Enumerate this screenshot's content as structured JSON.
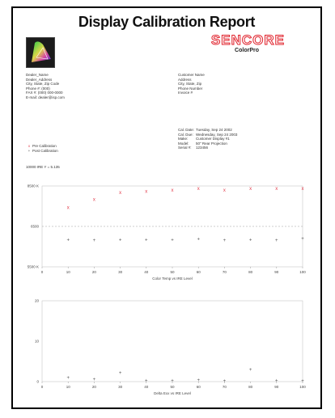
{
  "report": {
    "title": "Display Calibration Report",
    "brand": "SENCORE",
    "subbrand": "ColorPro"
  },
  "dealer": {
    "name": "Dealer_Name",
    "address": "Dealer_Address",
    "city": "City, State, Zip Code",
    "phone": "Phone #: (000)",
    "fax": "FAX #: (000) 000-0000",
    "email": "E-mail: dealer@isp.com"
  },
  "customer": {
    "name": "Customer Name",
    "address": "Address",
    "city": "City, State, Zip",
    "phone": "Phone Number",
    "invoice": "Invoice #"
  },
  "calibration": {
    "cal_date_label": "Cal. Date:",
    "cal_date": "Tuesday, Sep 24 2002",
    "cal_due_label": "Cal. Due:",
    "cal_due": "Wednesday, Sep 24 2003",
    "make_label": "Make:",
    "make": "Customer Display #1",
    "model_label": "Model:",
    "model": "50\" Rear Projection",
    "serial_label": "Serial #:",
    "serial": "123456"
  },
  "legend": {
    "pre_mark": "x",
    "pre_label": "Pre Calibration",
    "post_mark": "+",
    "post_label": "Post Calibration"
  },
  "reference": "10000 IRE  Y = 5.135",
  "colors": {
    "pre": "#e23b4a",
    "post": "#555555",
    "brand": "#e0202a"
  },
  "chart_data": [
    {
      "type": "scatter",
      "xlabel": "Color Temp vs IRE Level",
      "ylim": [
        5500,
        8500
      ],
      "y_ticks": [
        "8500 K",
        "6500",
        "5500 K"
      ],
      "x_ticks": [
        "0",
        "10",
        "20",
        "30",
        "40",
        "50",
        "60",
        "70",
        "80",
        "90",
        "100"
      ],
      "x": [
        10,
        20,
        30,
        40,
        50,
        60,
        70,
        80,
        90,
        100
      ],
      "series": [
        {
          "values": [
            7700,
            8000,
            8250,
            8300,
            8350,
            8400,
            8350,
            8400,
            8400,
            8400
          ]
        },
        {
          "values": [
            6500,
            6480,
            6500,
            6500,
            6500,
            6530,
            6490,
            6500,
            6480,
            6550
          ]
        }
      ]
    },
    {
      "type": "scatter",
      "xlabel": "Delta Exx vs IRE Level",
      "ylim": [
        0,
        20
      ],
      "y_ticks": [
        "20",
        "10",
        "0"
      ],
      "x_ticks": [
        "0",
        "10",
        "20",
        "30",
        "40",
        "50",
        "60",
        "70",
        "80",
        "90",
        "100"
      ],
      "x": [
        10,
        20,
        30,
        40,
        50,
        60,
        70,
        80,
        90,
        100
      ],
      "series": [
        {
          "values": [
            1.0,
            0.6,
            2.2,
            0.3,
            0.3,
            0.4,
            0.2,
            3.0,
            0.3,
            0.2
          ]
        }
      ]
    }
  ]
}
